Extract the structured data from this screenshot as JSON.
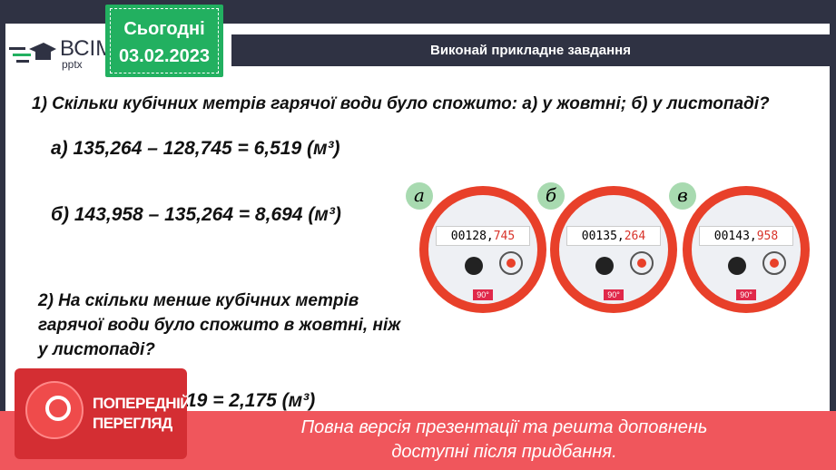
{
  "header": {
    "title": "Виконай прикладне завдання"
  },
  "logo": {
    "text": "ВСІМ",
    "sub": "pptx"
  },
  "badge": {
    "line1": "Сьогодні",
    "line2": "03.02.2023"
  },
  "task1": {
    "question": "1) Скільки кубічних метрів гарячої води було спожито: а) у жовтні; б) у листопаді?",
    "answer_a": "а) 135,264 – 128,745 = 6,519 (м³)",
    "answer_b": "б) 143,958 – 135,264 = 8,694 (м³)"
  },
  "task2": {
    "question_l1": "2) На скільки менше кубічних метрів",
    "question_l2": "гарячої води було спожито в жовтні, ніж",
    "question_l3": "у листопаді?",
    "answer_visible": "19  = 2,175 (м³)"
  },
  "meters": [
    {
      "label": "а",
      "digits_black": "00128,",
      "digits_red": "745",
      "badge": "90°"
    },
    {
      "label": "б",
      "digits_black": "00135,",
      "digits_red": "264",
      "badge": "90°"
    },
    {
      "label": "в",
      "digits_black": "00143,",
      "digits_red": "958",
      "badge": "90°"
    }
  ],
  "preview": {
    "line1": "ПОПЕРЕДНІЙ",
    "line2": "ПЕРЕГЛЯД"
  },
  "banner": {
    "line1": "Повна версія презентації та решта доповнень",
    "line2": "доступні після придбання."
  },
  "colors": {
    "dark": "#2f3243",
    "green": "#22b060",
    "red_banner": "#f0565c",
    "meter_red": "#e8402a"
  }
}
